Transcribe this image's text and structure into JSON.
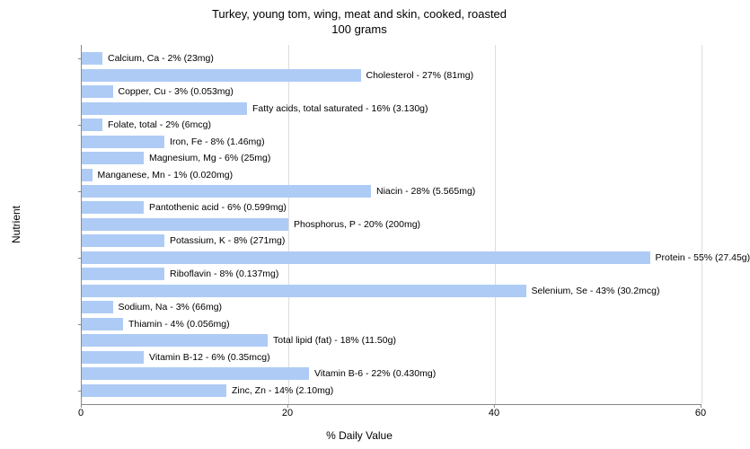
{
  "title_line1": "Turkey, young tom, wing, meat and skin, cooked, roasted",
  "title_line2": "100 grams",
  "y_axis_label": "Nutrient",
  "x_axis_label": "% Daily Value",
  "x_max": 60,
  "x_ticks": [
    0,
    20,
    40,
    60
  ],
  "bar_color": "#aecbf5",
  "grid_color": "#dddddd",
  "axis_color": "#888888",
  "text_color": "#333333",
  "background_color": "#ffffff",
  "label_fontsize": 10.5,
  "title_fontsize": 13,
  "axis_label_fontsize": 12,
  "nutrients": [
    {
      "label": "Calcium, Ca - 2% (23mg)",
      "value": 2
    },
    {
      "label": "Cholesterol - 27% (81mg)",
      "value": 27
    },
    {
      "label": "Copper, Cu - 3% (0.053mg)",
      "value": 3
    },
    {
      "label": "Fatty acids, total saturated - 16% (3.130g)",
      "value": 16
    },
    {
      "label": "Folate, total - 2% (6mcg)",
      "value": 2
    },
    {
      "label": "Iron, Fe - 8% (1.46mg)",
      "value": 8
    },
    {
      "label": "Magnesium, Mg - 6% (25mg)",
      "value": 6
    },
    {
      "label": "Manganese, Mn - 1% (0.020mg)",
      "value": 1
    },
    {
      "label": "Niacin - 28% (5.565mg)",
      "value": 28
    },
    {
      "label": "Pantothenic acid - 6% (0.599mg)",
      "value": 6
    },
    {
      "label": "Phosphorus, P - 20% (200mg)",
      "value": 20
    },
    {
      "label": "Potassium, K - 8% (271mg)",
      "value": 8
    },
    {
      "label": "Protein - 55% (27.45g)",
      "value": 55
    },
    {
      "label": "Riboflavin - 8% (0.137mg)",
      "value": 8
    },
    {
      "label": "Selenium, Se - 43% (30.2mcg)",
      "value": 43
    },
    {
      "label": "Sodium, Na - 3% (66mg)",
      "value": 3
    },
    {
      "label": "Thiamin - 4% (0.056mg)",
      "value": 4
    },
    {
      "label": "Total lipid (fat) - 18% (11.50g)",
      "value": 18
    },
    {
      "label": "Vitamin B-12 - 6% (0.35mcg)",
      "value": 6
    },
    {
      "label": "Vitamin B-6 - 22% (0.430mg)",
      "value": 22
    },
    {
      "label": "Zinc, Zn - 14% (2.10mg)",
      "value": 14
    }
  ]
}
